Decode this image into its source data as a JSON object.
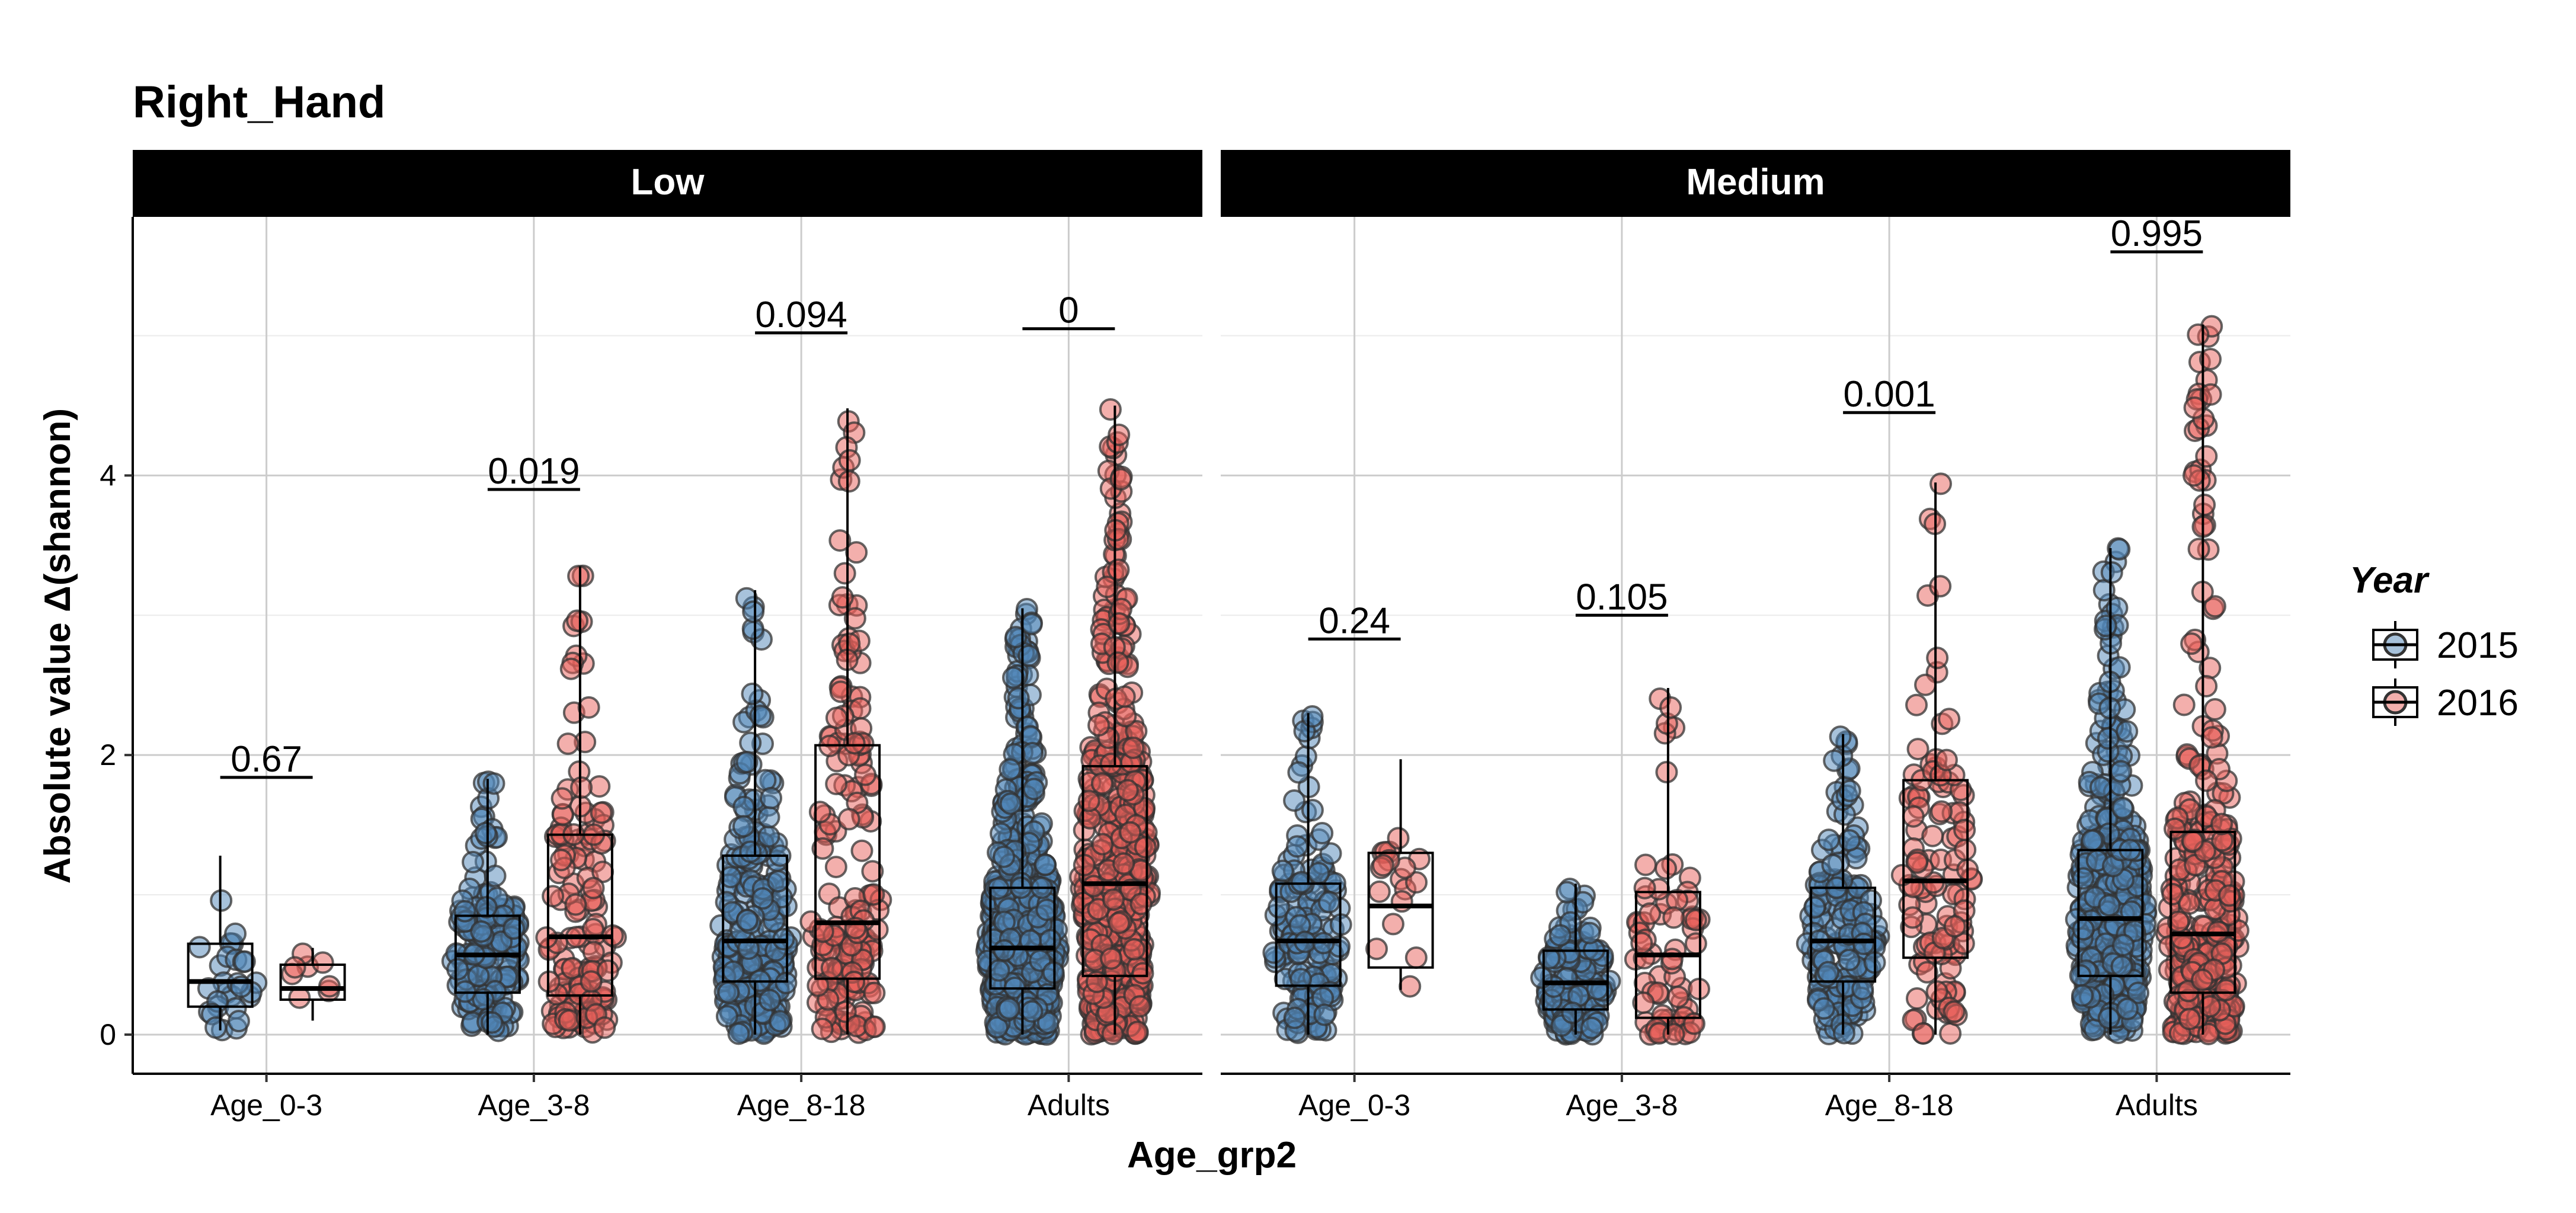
{
  "chart_data": {
    "type": "box",
    "title": "Right_Hand",
    "xlabel": "Age_grp2",
    "ylabel": "Absolute value Δ(shannon)",
    "ylim": [
      -0.28,
      5.85
    ],
    "yticks": [
      0,
      2,
      4
    ],
    "grid": true,
    "legend": {
      "title": "Year",
      "position": "right",
      "entries": [
        {
          "label": "2015",
          "color": "#4f86b8"
        },
        {
          "label": "2016",
          "color": "#e8605a"
        }
      ]
    },
    "categories": [
      "Age_0-3",
      "Age_3-8",
      "Age_8-18",
      "Adults"
    ],
    "panels": [
      {
        "label": "Low",
        "groups": [
          {
            "category": "Age_0-3",
            "pvalue": "0.67",
            "pvalue_y": 1.84,
            "boxes": [
              {
                "year": "2015",
                "q1": 0.2,
                "median": 0.38,
                "q3": 0.65,
                "lo": 0.03,
                "hi": 1.28,
                "n": 28
              },
              {
                "year": "2016",
                "q1": 0.25,
                "median": 0.33,
                "q3": 0.5,
                "lo": 0.1,
                "hi": 0.62,
                "n": 8
              }
            ]
          },
          {
            "category": "Age_3-8",
            "pvalue": "0.019",
            "pvalue_y": 3.9,
            "boxes": [
              {
                "year": "2015",
                "q1": 0.3,
                "median": 0.57,
                "q3": 0.85,
                "lo": 0.0,
                "hi": 1.83,
                "n": 170
              },
              {
                "year": "2016",
                "q1": 0.28,
                "median": 0.7,
                "q3": 1.43,
                "lo": 0.0,
                "hi": 3.35,
                "n": 140
              }
            ]
          },
          {
            "category": "Age_8-18",
            "pvalue": "0.094",
            "pvalue_y": 5.02,
            "boxes": [
              {
                "year": "2015",
                "q1": 0.38,
                "median": 0.67,
                "q3": 1.28,
                "lo": 0.0,
                "hi": 3.18,
                "n": 260
              },
              {
                "year": "2016",
                "q1": 0.4,
                "median": 0.8,
                "q3": 2.07,
                "lo": 0.0,
                "hi": 4.48,
                "n": 170
              }
            ]
          },
          {
            "category": "Adults",
            "pvalue": "0",
            "pvalue_y": 5.05,
            "boxes": [
              {
                "year": "2015",
                "q1": 0.33,
                "median": 0.62,
                "q3": 1.05,
                "lo": 0.0,
                "hi": 3.05,
                "n": 700
              },
              {
                "year": "2016",
                "q1": 0.42,
                "median": 1.08,
                "q3": 1.92,
                "lo": 0.0,
                "hi": 4.5,
                "n": 500
              }
            ]
          }
        ]
      },
      {
        "label": "Medium",
        "groups": [
          {
            "category": "Age_0-3",
            "pvalue": "0.24",
            "pvalue_y": 2.83,
            "boxes": [
              {
                "year": "2015",
                "q1": 0.35,
                "median": 0.67,
                "q3": 1.08,
                "lo": 0.0,
                "hi": 2.3,
                "n": 150
              },
              {
                "year": "2016",
                "q1": 0.48,
                "median": 0.92,
                "q3": 1.3,
                "lo": 0.32,
                "hi": 1.97,
                "n": 18
              }
            ]
          },
          {
            "category": "Age_3-8",
            "pvalue": "0.105",
            "pvalue_y": 3.0,
            "boxes": [
              {
                "year": "2015",
                "q1": 0.18,
                "median": 0.37,
                "q3": 0.6,
                "lo": 0.0,
                "hi": 1.08,
                "n": 150
              },
              {
                "year": "2016",
                "q1": 0.12,
                "median": 0.57,
                "q3": 1.02,
                "lo": 0.0,
                "hi": 2.48,
                "n": 70
              }
            ]
          },
          {
            "category": "Age_8-18",
            "pvalue": "0.001",
            "pvalue_y": 4.45,
            "boxes": [
              {
                "year": "2015",
                "q1": 0.38,
                "median": 0.67,
                "q3": 1.05,
                "lo": 0.0,
                "hi": 2.15,
                "n": 170
              },
              {
                "year": "2016",
                "q1": 0.55,
                "median": 1.1,
                "q3": 1.82,
                "lo": 0.0,
                "hi": 3.95,
                "n": 110
              }
            ]
          },
          {
            "category": "Adults",
            "pvalue": "0.995",
            "pvalue_y": 5.6,
            "boxes": [
              {
                "year": "2015",
                "q1": 0.42,
                "median": 0.83,
                "q3": 1.32,
                "lo": 0.0,
                "hi": 3.48,
                "n": 420
              },
              {
                "year": "2016",
                "q1": 0.3,
                "median": 0.72,
                "q3": 1.45,
                "lo": 0.0,
                "hi": 5.08,
                "n": 320
              }
            ]
          }
        ]
      }
    ]
  }
}
